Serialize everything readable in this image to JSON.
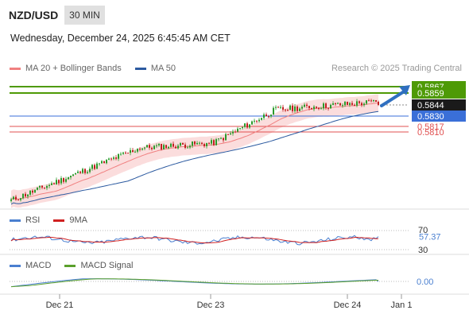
{
  "header": {
    "symbol": "NZD/USD",
    "timeframe": "30 MIN",
    "datetime": "Wednesday, December 24, 2025 6:45:45 AM CET"
  },
  "legend": {
    "ma20_label": "MA 20 + Bollinger Bands",
    "ma50_label": "MA 50",
    "credit": "Research © 2025 Trading Central"
  },
  "colors": {
    "ma20": "#f08080",
    "ma50": "#2c5aa0",
    "band_fill": "#fad4d4",
    "resistance": "#4e9a06",
    "pivot": "#3a6fd8",
    "support": "#e05050",
    "rsi": "#4a7fd0",
    "rsi_ma": "#d02020",
    "macd": "#4a7fd0",
    "macd_signal": "#5aa02c",
    "candle_up": "#2a9a2a",
    "candle_down": "#c02020",
    "current_bg": "#1a1a1a"
  },
  "chart_data": [
    {
      "type": "candlestick",
      "panel": "price",
      "ylim": [
        0.5714,
        0.5878
      ],
      "x_ticks": [
        "Dec 21",
        "Dec 23",
        "Dec 24",
        "Jan 1"
      ],
      "start_price": 0.5724,
      "end_price": 0.5844,
      "levels": [
        {
          "value": 0.5867,
          "label": "0.5867",
          "kind": "resistance"
        },
        {
          "value": 0.5859,
          "label": "0.5859",
          "kind": "resistance"
        },
        {
          "value": 0.5844,
          "label": "0.5844",
          "kind": "current"
        },
        {
          "value": 0.583,
          "label": "0.5830",
          "kind": "pivot"
        },
        {
          "value": 0.5817,
          "label": "0.5817",
          "kind": "support"
        },
        {
          "value": 0.581,
          "label": "0.5810",
          "kind": "support"
        }
      ],
      "projection": "up"
    },
    {
      "type": "line",
      "panel": "rsi",
      "series": [
        {
          "name": "RSI"
        },
        {
          "name": "9MA"
        }
      ],
      "y_ticks": [
        "70",
        "30"
      ],
      "last_value": "57.37"
    },
    {
      "type": "line",
      "panel": "macd",
      "series": [
        {
          "name": "MACD"
        },
        {
          "name": "MACD Signal"
        }
      ],
      "last_value": "0.00"
    }
  ]
}
